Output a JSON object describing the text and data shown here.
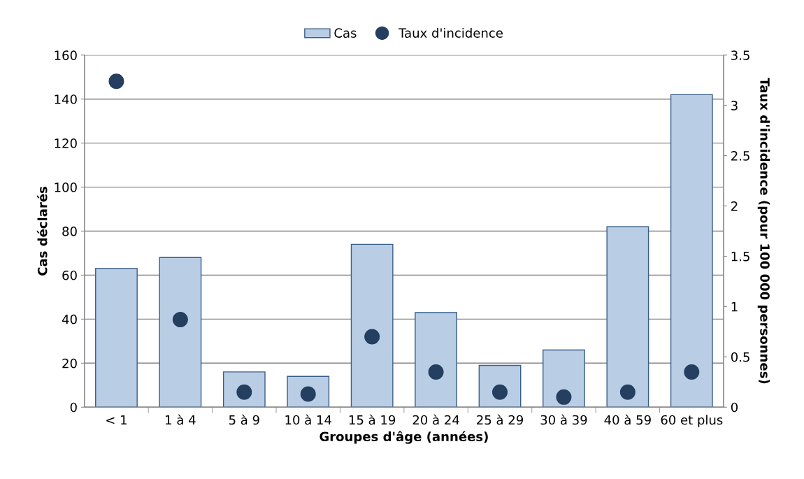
{
  "chart_data": {
    "type": "bar",
    "xlabel": "Groupes d'âge (années)",
    "ylabel": "Cas déclarés",
    "y2label": "Taux d'incidence (pour 100 000 personnes)",
    "categories": [
      "< 1",
      "1 à 4",
      "5 à 9",
      "10 à 14",
      "15 à 19",
      "20 à 24",
      "25 à 29",
      "30 à 39",
      "40 à 59",
      "60 et plus"
    ],
    "series": [
      {
        "name": "Cas",
        "color": "#b9cde5",
        "values": [
          63,
          68,
          16,
          14,
          74,
          43,
          19,
          26,
          82,
          142
        ]
      },
      {
        "name": "Taux d'incidence",
        "type": "scatter",
        "axis": "y2",
        "marker": "circle",
        "color": "#243f60",
        "values": [
          3.24,
          0.87,
          0.15,
          0.13,
          0.7,
          0.35,
          0.15,
          0.1,
          0.15,
          0.35
        ]
      }
    ],
    "ylim": [
      0,
      160
    ],
    "yticks": [
      0,
      20,
      40,
      60,
      80,
      100,
      120,
      140,
      160
    ],
    "y2lim": [
      0,
      3.5
    ],
    "y2ticks": [
      0,
      0.5,
      1,
      1.5,
      2,
      2.5,
      3,
      3.5
    ],
    "grid": "y",
    "legend": "top"
  }
}
